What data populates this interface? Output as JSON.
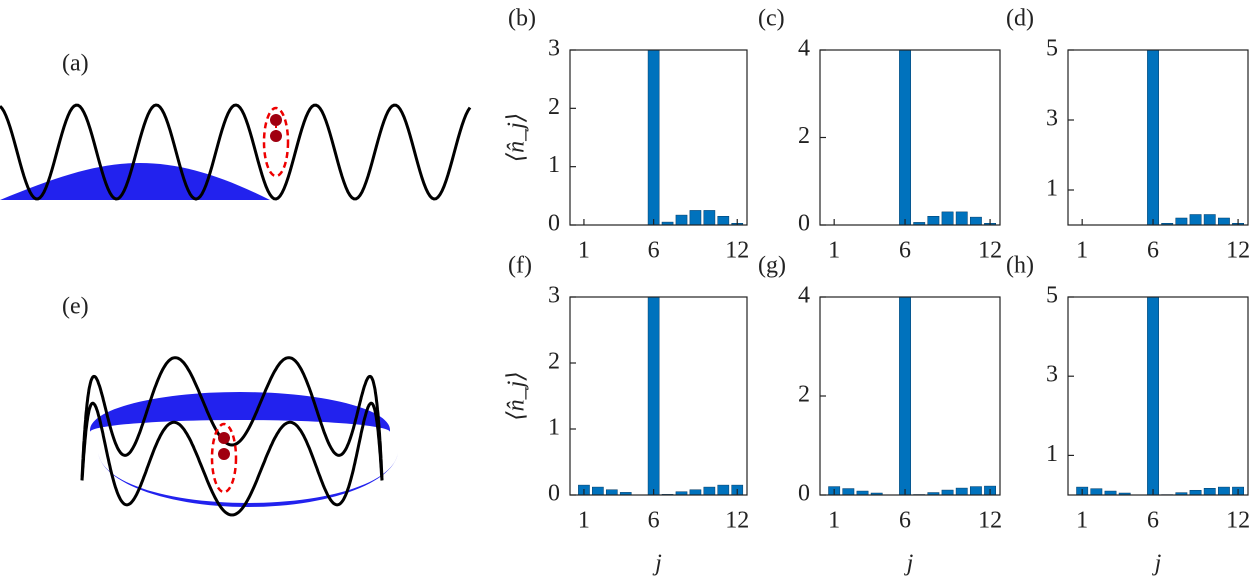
{
  "diagrams": [
    {
      "label": "(a)"
    },
    {
      "label": "(e)"
    }
  ],
  "chart_data": [
    {
      "type": "bar",
      "title": "(b)",
      "ylabel": "⟨n̂_j⟩",
      "x": [
        1,
        2,
        3,
        4,
        5,
        6,
        7,
        8,
        9,
        10,
        11,
        12
      ],
      "values": [
        0,
        0,
        0,
        0,
        0,
        3.1,
        0.05,
        0.17,
        0.25,
        0.25,
        0.15,
        0.03
      ],
      "color": "#0072bd",
      "xlim": [
        0,
        12.7
      ],
      "xticks": [
        1,
        6,
        12
      ],
      "ylim": [
        0,
        3
      ],
      "yticks": [
        0,
        1,
        2,
        3
      ]
    },
    {
      "type": "bar",
      "title": "(c)",
      "x": [
        1,
        2,
        3,
        4,
        5,
        6,
        7,
        8,
        9,
        10,
        11,
        12
      ],
      "values": [
        0,
        0,
        0,
        0,
        0,
        4.1,
        0.06,
        0.2,
        0.3,
        0.3,
        0.18,
        0.04
      ],
      "color": "#0072bd",
      "xlim": [
        0,
        12.7
      ],
      "xticks": [
        1,
        6,
        12
      ],
      "ylim": [
        0,
        4
      ],
      "yticks": [
        0,
        2,
        4
      ]
    },
    {
      "type": "bar",
      "title": "(d)",
      "x": [
        1,
        2,
        3,
        4,
        5,
        6,
        7,
        8,
        9,
        10,
        11,
        12
      ],
      "values": [
        0,
        0,
        0,
        0,
        0,
        5.1,
        0.05,
        0.2,
        0.3,
        0.3,
        0.2,
        0.05
      ],
      "color": "#0072bd",
      "xlim": [
        0,
        12.7
      ],
      "xticks": [
        1,
        6,
        12
      ],
      "ylim": [
        0,
        5
      ],
      "yticks": [
        1,
        3,
        5
      ]
    },
    {
      "type": "bar",
      "title": "(f)",
      "ylabel": "⟨n̂_j⟩",
      "xlabel": "j",
      "x": [
        1,
        2,
        3,
        4,
        5,
        6,
        7,
        8,
        9,
        10,
        11,
        12
      ],
      "values": [
        0.15,
        0.12,
        0.08,
        0.04,
        0,
        3.1,
        0.01,
        0.05,
        0.08,
        0.12,
        0.15,
        0.15
      ],
      "color": "#0072bd",
      "xlim": [
        0,
        12.7
      ],
      "xticks": [
        1,
        6,
        12
      ],
      "ylim": [
        0,
        3
      ],
      "yticks": [
        0,
        1,
        2,
        3
      ]
    },
    {
      "type": "bar",
      "title": "(g)",
      "xlabel": "j",
      "x": [
        1,
        2,
        3,
        4,
        5,
        6,
        7,
        8,
        9,
        10,
        11,
        12
      ],
      "values": [
        0.17,
        0.13,
        0.08,
        0.04,
        0,
        4.1,
        0.01,
        0.05,
        0.1,
        0.14,
        0.17,
        0.18
      ],
      "color": "#0072bd",
      "xlim": [
        0,
        12.7
      ],
      "xticks": [
        1,
        6,
        12
      ],
      "ylim": [
        0,
        4
      ],
      "yticks": [
        0,
        2,
        4
      ]
    },
    {
      "type": "bar",
      "title": "(h)",
      "xlabel": "j",
      "x": [
        1,
        2,
        3,
        4,
        5,
        6,
        7,
        8,
        9,
        10,
        11,
        12
      ],
      "values": [
        0.2,
        0.16,
        0.1,
        0.05,
        0,
        5.1,
        0.01,
        0.06,
        0.12,
        0.17,
        0.2,
        0.2
      ],
      "color": "#0072bd",
      "xlim": [
        0,
        12.7
      ],
      "xticks": [
        1,
        6,
        12
      ],
      "ylim": [
        0,
        5
      ],
      "yticks": [
        1,
        3,
        5
      ]
    }
  ]
}
